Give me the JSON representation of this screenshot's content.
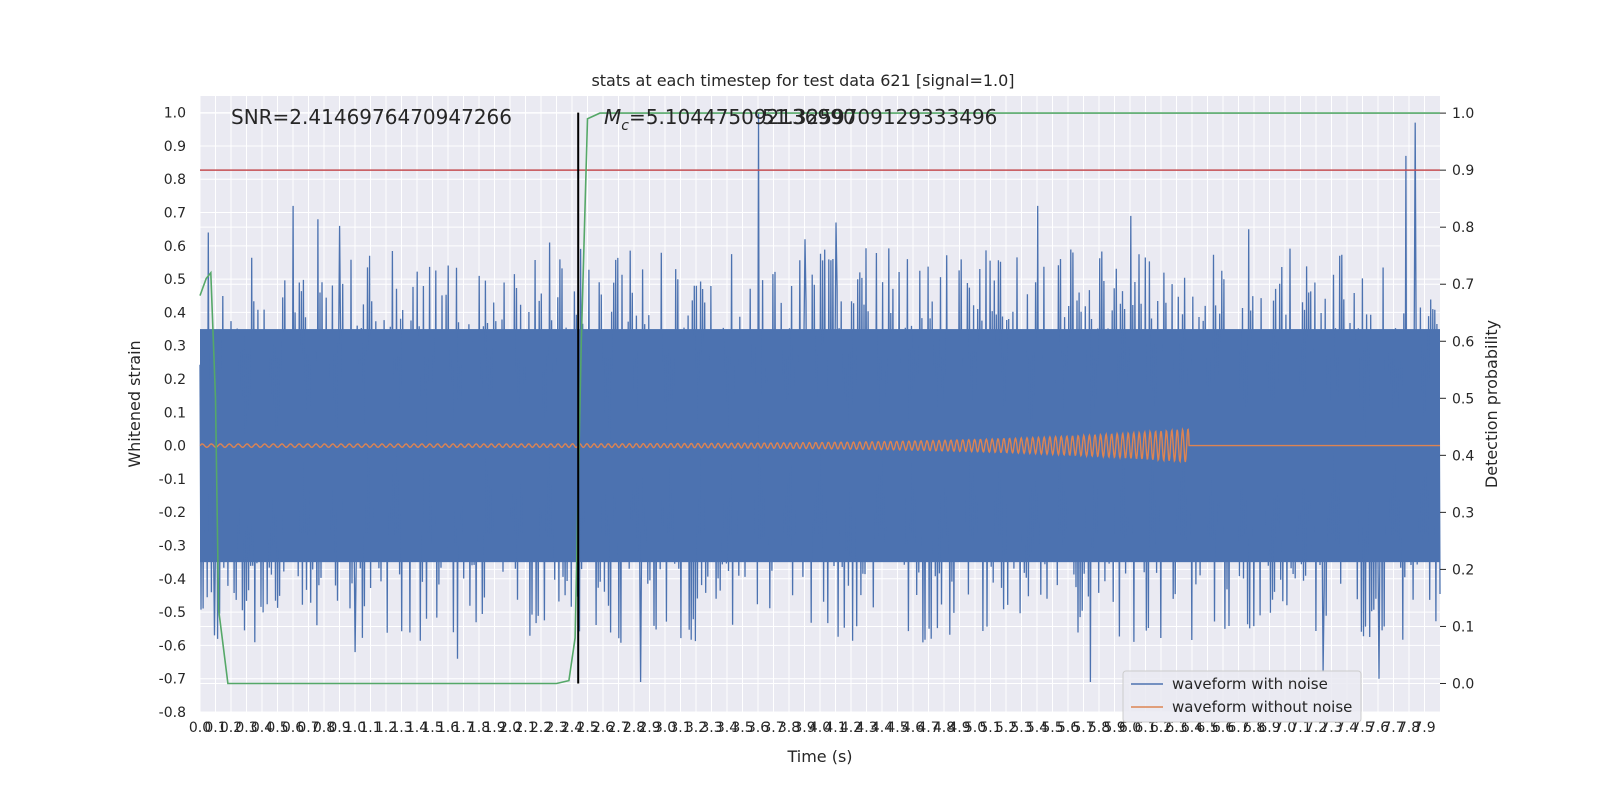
{
  "chart_data": {
    "type": "line",
    "title": "stats at each timestep for test data 621 [signal=1.0]",
    "xlabel": "Time (s)",
    "ylabel_left": "Whitened strain",
    "ylabel_right": "Detection probability",
    "xlim": [
      0,
      8
    ],
    "ylim_left": [
      -0.8,
      1.05
    ],
    "ylim_right": [
      -0.05,
      1.03
    ],
    "x_ticks": [
      "0.0",
      "0.1",
      "0.2",
      "0.3",
      "0.4",
      "0.5",
      "0.6",
      "0.7",
      "0.8",
      "0.9",
      "1.0",
      "1.1",
      "1.2",
      "1.3",
      "1.4",
      "1.5",
      "1.6",
      "1.7",
      "1.8",
      "1.9",
      "2.0",
      "2.1",
      "2.2",
      "2.3",
      "2.4",
      "2.5",
      "2.6",
      "2.7",
      "2.8",
      "2.9",
      "3.0",
      "3.1",
      "3.2",
      "3.3",
      "3.4",
      "3.5",
      "3.6",
      "3.7",
      "3.8",
      "3.9",
      "4.0",
      "4.1",
      "4.2",
      "4.3",
      "4.4",
      "4.5",
      "4.6",
      "4.7",
      "4.8",
      "4.9",
      "5.0",
      "5.1",
      "5.2",
      "5.3",
      "5.4",
      "5.5",
      "5.6",
      "5.7",
      "5.8",
      "5.9",
      "6.0",
      "6.1",
      "6.2",
      "6.3",
      "6.4",
      "6.5",
      "6.6",
      "6.7",
      "6.8",
      "6.9",
      "7.0",
      "7.1",
      "7.2",
      "7.3",
      "7.4",
      "7.5",
      "7.6",
      "7.7",
      "7.8",
      "7.9"
    ],
    "y_ticks_left": [
      "-0.8",
      "-0.7",
      "-0.6",
      "-0.5",
      "-0.4",
      "-0.3",
      "-0.2",
      "-0.1",
      "0.0",
      "0.1",
      "0.2",
      "0.3",
      "0.4",
      "0.5",
      "0.6",
      "0.7",
      "0.8",
      "0.9",
      "1.0"
    ],
    "y_ticks_right": [
      "0.0",
      "0.1",
      "0.2",
      "0.3",
      "0.4",
      "0.5",
      "0.6",
      "0.7",
      "0.8",
      "0.9",
      "1.0"
    ],
    "annotations": {
      "snr": "SNR=2.4146976470947266",
      "mc_symbol": "M",
      "mc_sub": "c",
      "mc_value": "=5.104475092136990",
      "mc_overlap": "51.3259709129333496"
    },
    "legend": {
      "placement": "lower-right",
      "entries": [
        "waveform with noise",
        "waveform without noise"
      ]
    },
    "threshold_line": {
      "y_right": 0.9,
      "color": "#c44e52"
    },
    "event_marker": {
      "x": 2.44,
      "color": "#000000"
    },
    "noisy_waveform": {
      "name": "waveform with noise",
      "color": "#4c72b0",
      "sample_count": 1200,
      "base_low": -0.35,
      "base_high": 0.35,
      "peaks": [
        {
          "x": 0.05,
          "y": 0.64
        },
        {
          "x": 0.09,
          "y": -0.57
        },
        {
          "x": 0.6,
          "y": 0.72
        },
        {
          "x": 0.76,
          "y": 0.68
        },
        {
          "x": 0.9,
          "y": 0.66
        },
        {
          "x": 1.0,
          "y": -0.62
        },
        {
          "x": 1.66,
          "y": -0.64
        },
        {
          "x": 2.84,
          "y": -0.71
        },
        {
          "x": 3.6,
          "y": 1.0
        },
        {
          "x": 4.1,
          "y": 0.67
        },
        {
          "x": 5.4,
          "y": 0.72
        },
        {
          "x": 5.74,
          "y": -0.71
        },
        {
          "x": 6.0,
          "y": 0.69
        },
        {
          "x": 7.24,
          "y": -0.68
        },
        {
          "x": 7.6,
          "y": -0.7
        },
        {
          "x": 7.77,
          "y": 0.87
        },
        {
          "x": 7.83,
          "y": 0.97
        },
        {
          "x": 6.76,
          "y": 0.65
        },
        {
          "x": 3.9,
          "y": 0.62
        },
        {
          "x": 2.25,
          "y": 0.61
        }
      ]
    },
    "clean_waveform": {
      "name": "waveform without noise",
      "color": "#dd8452",
      "start_amplitude": 0.005,
      "end_amplitude": 0.05,
      "merger_time": 6.38
    },
    "detection_probability": {
      "color": "#55a868",
      "x": [
        0.0,
        0.04,
        0.07,
        0.1,
        0.12,
        0.18,
        2.3,
        2.38,
        2.42,
        2.46,
        2.5,
        2.58,
        8.0
      ],
      "y": [
        0.68,
        0.71,
        0.72,
        0.5,
        0.13,
        0.0,
        0.0,
        0.005,
        0.08,
        0.6,
        0.99,
        1.0,
        1.0
      ]
    },
    "grid": true
  }
}
